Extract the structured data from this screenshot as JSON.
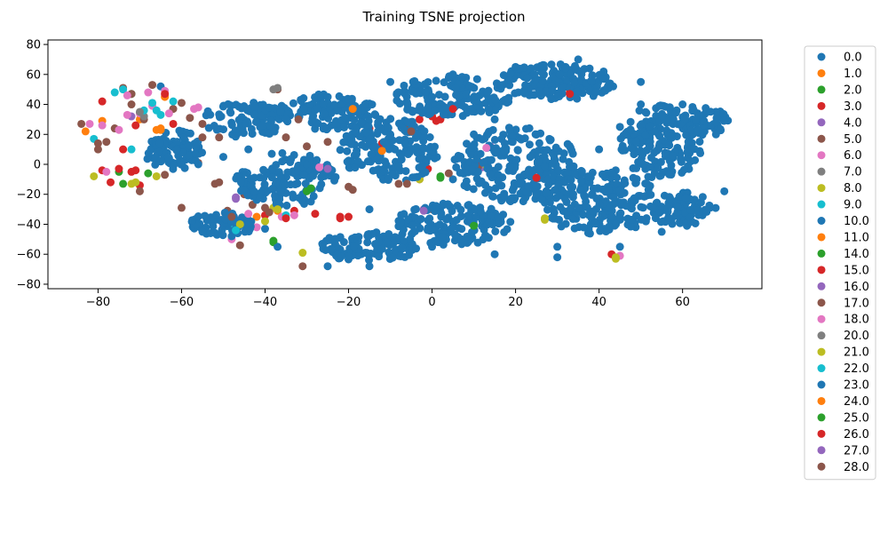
{
  "chart_data": {
    "type": "scatter",
    "title": "Training TSNE projection",
    "xlabel": "",
    "ylabel": "",
    "xlim": [
      -92,
      79
    ],
    "ylim": [
      -83,
      83
    ],
    "xticks": [
      -80,
      -60,
      -40,
      -20,
      0,
      20,
      40,
      60
    ],
    "yticks": [
      -80,
      -60,
      -40,
      -20,
      0,
      20,
      40,
      60,
      80
    ],
    "grid": false,
    "legend_position": "outside-right",
    "seed": 7,
    "series": [
      {
        "name": "0.0",
        "color": "#1f77b4",
        "values": [
          [
            -65,
            52
          ],
          [
            -40,
            -43
          ],
          [
            -10,
            20
          ],
          [
            15,
            30
          ],
          [
            40,
            10
          ],
          [
            60,
            -20
          ],
          [
            30,
            -55
          ],
          [
            -20,
            40
          ],
          [
            5,
            -10
          ],
          [
            50,
            40
          ]
        ]
      },
      {
        "name": "1.0",
        "color": "#ff7f0e",
        "values": [
          [
            -79,
            29
          ],
          [
            -66,
            23
          ],
          [
            -64,
            45
          ],
          [
            -42,
            -35
          ],
          [
            -37,
            -31
          ],
          [
            -18,
            37
          ],
          [
            -13,
            10
          ],
          [
            -70,
            30
          ]
        ]
      },
      {
        "name": "2.0",
        "color": "#2ca02c",
        "values": [
          [
            -75,
            -5
          ],
          [
            -68,
            -6
          ],
          [
            -30,
            -17
          ],
          [
            -38,
            -52
          ],
          [
            2,
            -8
          ],
          [
            10,
            -40
          ],
          [
            -72,
            47
          ]
        ]
      },
      {
        "name": "3.0",
        "color": "#d62728",
        "values": [
          [
            -79,
            42
          ],
          [
            -79,
            -4
          ],
          [
            -77,
            -12
          ],
          [
            -74,
            10
          ],
          [
            -72,
            -5
          ],
          [
            -71,
            26
          ],
          [
            -70,
            -14
          ],
          [
            -33,
            -31
          ],
          [
            -28,
            -33
          ],
          [
            -22,
            -36
          ],
          [
            -15,
            24
          ],
          [
            -12,
            14
          ],
          [
            -3,
            30
          ],
          [
            0,
            32
          ],
          [
            2,
            30
          ],
          [
            3,
            38
          ],
          [
            -1,
            -3
          ],
          [
            11,
            2
          ],
          [
            25,
            -9
          ],
          [
            33,
            48
          ],
          [
            43,
            -60
          ],
          [
            -45,
            38
          ],
          [
            -40,
            -34
          ],
          [
            -62,
            27
          ]
        ]
      },
      {
        "name": "4.0",
        "color": "#9467bd",
        "values": [
          [
            -72,
            32
          ],
          [
            -47,
            -23
          ],
          [
            -2,
            -30
          ],
          [
            12,
            -2
          ]
        ]
      },
      {
        "name": "5.0",
        "color": "#8c564b",
        "values": [
          [
            -84,
            27
          ],
          [
            -80,
            10
          ],
          [
            -78,
            15
          ],
          [
            -76,
            24
          ],
          [
            -74,
            51
          ],
          [
            -72,
            40
          ],
          [
            -70,
            -18
          ],
          [
            -69,
            30
          ],
          [
            -67,
            53
          ],
          [
            -64,
            -7
          ],
          [
            -62,
            37
          ],
          [
            -58,
            31
          ],
          [
            -55,
            27
          ],
          [
            -56,
            1
          ],
          [
            -52,
            -13
          ],
          [
            -51,
            18
          ],
          [
            -49,
            -31
          ],
          [
            -46,
            -54
          ],
          [
            -45,
            -20
          ],
          [
            -43,
            -27
          ],
          [
            -40,
            -29
          ],
          [
            -37,
            50
          ],
          [
            -35,
            18
          ],
          [
            -30,
            12
          ],
          [
            -25,
            15
          ],
          [
            -20,
            -15
          ],
          [
            -8,
            -13
          ],
          [
            -6,
            24
          ],
          [
            -3,
            -10
          ],
          [
            0,
            -30
          ],
          [
            4,
            -6
          ],
          [
            11,
            -2
          ],
          [
            -31,
            -68
          ],
          [
            -60,
            -29
          ]
        ]
      },
      {
        "name": "6.0",
        "color": "#e377c2",
        "values": [
          [
            -82,
            27
          ],
          [
            -78,
            -5
          ],
          [
            -73,
            33
          ],
          [
            -70,
            34
          ],
          [
            -67,
            39
          ],
          [
            -64,
            49
          ],
          [
            -63,
            34
          ],
          [
            -57,
            37
          ],
          [
            -50,
            -41
          ],
          [
            -48,
            -50
          ],
          [
            -46,
            -37
          ],
          [
            -42,
            -42
          ],
          [
            -36,
            -35
          ],
          [
            -33,
            -34
          ],
          [
            -26,
            -2
          ],
          [
            -2,
            -30
          ],
          [
            14,
            12
          ],
          [
            45,
            -61
          ],
          [
            -75,
            23
          ],
          [
            -68,
            48
          ]
        ]
      },
      {
        "name": "7.0",
        "color": "#7f7f7f",
        "values": [
          [
            -38,
            50
          ],
          [
            -69,
            32
          ],
          [
            -47,
            -44
          ]
        ]
      },
      {
        "name": "8.0",
        "color": "#bcbd22",
        "values": [
          [
            -81,
            -8
          ],
          [
            -72,
            -13
          ],
          [
            -66,
            -8
          ],
          [
            -47,
            -41
          ],
          [
            -38,
            -29
          ],
          [
            -31,
            -59
          ],
          [
            -3,
            -10
          ],
          [
            13,
            -1
          ],
          [
            27,
            -37
          ],
          [
            44,
            -63
          ],
          [
            -45,
            -36
          ],
          [
            -40,
            -38
          ]
        ]
      },
      {
        "name": "9.0",
        "color": "#17becf",
        "values": [
          [
            -81,
            17
          ],
          [
            -74,
            50
          ],
          [
            -69,
            36
          ],
          [
            -67,
            41
          ],
          [
            -65,
            33
          ],
          [
            -62,
            42
          ],
          [
            -48,
            -43
          ],
          [
            -35,
            -34
          ],
          [
            -72,
            10
          ]
        ]
      },
      {
        "name": "10.0",
        "color": "#1f77b4",
        "values": [
          [
            -56,
            0
          ],
          [
            -50,
            5
          ],
          [
            -44,
            10
          ],
          [
            -35,
            30
          ],
          [
            -25,
            45
          ],
          [
            -10,
            55
          ],
          [
            5,
            60
          ],
          [
            20,
            65
          ],
          [
            35,
            70
          ],
          [
            50,
            55
          ],
          [
            60,
            40
          ],
          [
            68,
            20
          ],
          [
            70,
            -18
          ],
          [
            55,
            -45
          ],
          [
            45,
            -55
          ],
          [
            30,
            -62
          ],
          [
            15,
            -60
          ],
          [
            0,
            -55
          ],
          [
            -15,
            -68
          ],
          [
            -25,
            -68
          ],
          [
            -37,
            -55
          ],
          [
            -48,
            -48
          ],
          [
            -55,
            -45
          ]
        ]
      },
      {
        "name": "11.0",
        "color": "#ff7f0e",
        "values": [
          [
            -83,
            22
          ],
          [
            -65,
            24
          ],
          [
            -12,
            9
          ]
        ]
      },
      {
        "name": "14.0",
        "color": "#2ca02c",
        "values": [
          [
            -74,
            -13
          ],
          [
            -29,
            -16
          ],
          [
            2,
            -9
          ],
          [
            10,
            -41
          ]
        ]
      },
      {
        "name": "15.0",
        "color": "#d62728",
        "values": [
          [
            -75,
            -3
          ],
          [
            -71,
            -4
          ],
          [
            -64,
            47
          ],
          [
            -20,
            -35
          ],
          [
            -35,
            -36
          ],
          [
            1,
            29
          ],
          [
            5,
            37
          ]
        ]
      },
      {
        "name": "16.0",
        "color": "#9467bd",
        "values": [
          [
            -47,
            -22
          ],
          [
            -25,
            -3
          ]
        ]
      },
      {
        "name": "17.0",
        "color": "#8c564b",
        "values": [
          [
            -80,
            14
          ],
          [
            -72,
            47
          ],
          [
            -60,
            41
          ],
          [
            -55,
            18
          ],
          [
            -48,
            -35
          ],
          [
            -39,
            -32
          ],
          [
            -32,
            30
          ],
          [
            -19,
            -17
          ],
          [
            -5,
            22
          ]
        ]
      },
      {
        "name": "18.0",
        "color": "#e377c2",
        "values": [
          [
            -79,
            26
          ],
          [
            -73,
            46
          ],
          [
            -56,
            38
          ],
          [
            -44,
            -33
          ],
          [
            -27,
            -2
          ],
          [
            13,
            11
          ]
        ]
      },
      {
        "name": "20.0",
        "color": "#7f7f7f",
        "values": [
          [
            -70,
            35
          ],
          [
            -37,
            51
          ]
        ]
      },
      {
        "name": "21.0",
        "color": "#bcbd22",
        "values": [
          [
            -71,
            -12
          ],
          [
            -46,
            -40
          ],
          [
            -37,
            -30
          ],
          [
            27,
            -36
          ],
          [
            44,
            -62
          ]
        ]
      },
      {
        "name": "22.0",
        "color": "#17becf",
        "values": [
          [
            -76,
            48
          ],
          [
            -66,
            36
          ],
          [
            -47,
            -44
          ]
        ]
      },
      {
        "name": "23.0",
        "color": "#1f77b4",
        "values": [
          [
            -30,
            0
          ],
          [
            -15,
            -30
          ],
          [
            10,
            20
          ],
          [
            25,
            -20
          ],
          [
            45,
            25
          ],
          [
            0,
            45
          ]
        ]
      },
      {
        "name": "24.0",
        "color": "#ff7f0e",
        "values": [
          [
            -65,
            23
          ],
          [
            -19,
            37
          ]
        ]
      },
      {
        "name": "25.0",
        "color": "#2ca02c",
        "values": [
          [
            -30,
            -18
          ],
          [
            -38,
            -51
          ]
        ]
      },
      {
        "name": "26.0",
        "color": "#d62728",
        "values": [
          [
            -22,
            -35
          ],
          [
            25,
            -9
          ],
          [
            33,
            47
          ]
        ]
      },
      {
        "name": "27.0",
        "color": "#9467bd",
        "values": [
          [
            -2,
            -31
          ]
        ]
      },
      {
        "name": "28.0",
        "color": "#8c564b",
        "values": [
          [
            -51,
            -12
          ],
          [
            -6,
            -13
          ]
        ]
      }
    ]
  }
}
